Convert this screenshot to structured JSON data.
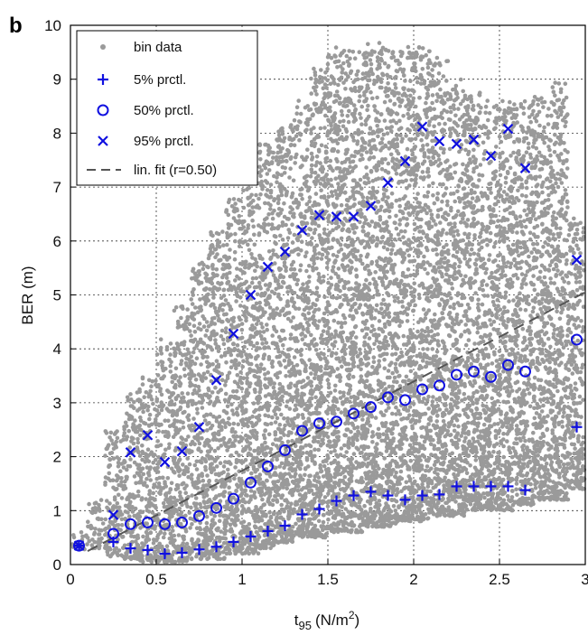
{
  "panel_letter": "b",
  "chart_data": {
    "type": "scatter",
    "xlabel_main": "t",
    "xlabel_sub": "95",
    "xlabel_unit": "(N/m",
    "xlabel_sup": "2",
    "xlabel_close": ")",
    "ylabel": "BER (m)",
    "xlim": [
      0,
      3
    ],
    "ylim": [
      0,
      10
    ],
    "x_ticks": [
      0,
      0.5,
      1,
      1.5,
      2,
      2.5,
      3
    ],
    "x_tick_labels": [
      "0",
      "0.5",
      "1",
      "1.5",
      "2",
      "2.5",
      "3"
    ],
    "y_ticks": [
      0,
      1,
      2,
      3,
      4,
      5,
      6,
      7,
      8,
      9,
      10
    ],
    "y_tick_labels": [
      "0",
      "1",
      "2",
      "3",
      "4",
      "5",
      "6",
      "7",
      "8",
      "9",
      "10"
    ],
    "grid": true,
    "legend_position": "top-left",
    "colors": {
      "bin": "#9a9a9a",
      "percentile": "#1010e0",
      "fit": "#555555"
    },
    "series": [
      {
        "name": "5% prctl.",
        "marker": "plus",
        "x": [
          0.05,
          0.25,
          0.35,
          0.45,
          0.55,
          0.65,
          0.75,
          0.85,
          0.95,
          1.05,
          1.15,
          1.25,
          1.35,
          1.45,
          1.55,
          1.65,
          1.75,
          1.85,
          1.95,
          2.05,
          2.15,
          2.25,
          2.35,
          2.45,
          2.55,
          2.65,
          2.95
        ],
        "y": [
          0.35,
          0.42,
          0.3,
          0.27,
          0.2,
          0.22,
          0.28,
          0.33,
          0.42,
          0.52,
          0.62,
          0.72,
          0.93,
          1.03,
          1.18,
          1.28,
          1.35,
          1.28,
          1.2,
          1.28,
          1.3,
          1.45,
          1.45,
          1.45,
          1.45,
          1.38,
          2.55
        ]
      },
      {
        "name": "50% prctl.",
        "marker": "circle",
        "x": [
          0.05,
          0.25,
          0.35,
          0.45,
          0.55,
          0.65,
          0.75,
          0.85,
          0.95,
          1.05,
          1.15,
          1.25,
          1.35,
          1.45,
          1.55,
          1.65,
          1.75,
          1.85,
          1.95,
          2.05,
          2.15,
          2.25,
          2.35,
          2.45,
          2.55,
          2.65,
          2.95
        ],
        "y": [
          0.35,
          0.57,
          0.75,
          0.78,
          0.75,
          0.78,
          0.9,
          1.05,
          1.22,
          1.52,
          1.82,
          2.12,
          2.48,
          2.62,
          2.65,
          2.8,
          2.92,
          3.1,
          3.05,
          3.25,
          3.32,
          3.52,
          3.58,
          3.48,
          3.7,
          3.58,
          4.17
        ]
      },
      {
        "name": "95% prctl.",
        "marker": "cross",
        "x": [
          0.05,
          0.25,
          0.35,
          0.45,
          0.55,
          0.65,
          0.75,
          0.85,
          0.95,
          1.05,
          1.15,
          1.25,
          1.35,
          1.45,
          1.55,
          1.65,
          1.75,
          1.85,
          1.95,
          2.05,
          2.15,
          2.25,
          2.35,
          2.45,
          2.55,
          2.65,
          2.95
        ],
        "y": [
          0.35,
          0.92,
          2.08,
          2.4,
          1.9,
          2.1,
          2.55,
          3.42,
          4.28,
          5.0,
          5.52,
          5.8,
          6.2,
          6.48,
          6.45,
          6.45,
          6.65,
          7.08,
          7.48,
          8.12,
          7.85,
          7.8,
          7.88,
          7.58,
          8.08,
          7.35,
          5.65
        ]
      }
    ],
    "bin_data": {
      "name": "bin data",
      "marker": "dot",
      "bins_x": [
        0.05,
        0.15,
        0.25,
        0.35,
        0.45,
        0.55,
        0.65,
        0.75,
        0.85,
        0.95,
        1.05,
        1.15,
        1.25,
        1.35,
        1.45,
        1.55,
        1.65,
        1.75,
        1.85,
        1.95,
        2.05,
        2.15,
        2.25,
        2.35,
        2.45,
        2.55,
        2.65,
        2.75,
        2.85,
        2.95
      ],
      "bins_ymin": [
        0.25,
        0.3,
        0.15,
        0.1,
        0.05,
        0.05,
        0.05,
        0.1,
        0.1,
        0.2,
        0.2,
        0.3,
        0.4,
        0.5,
        0.5,
        0.6,
        0.6,
        0.7,
        0.7,
        0.8,
        0.8,
        0.9,
        0.9,
        1.0,
        1.0,
        1.0,
        1.1,
        1.2,
        1.2,
        1.4
      ],
      "bins_ymax": [
        0.6,
        1.2,
        2.5,
        3.2,
        3.6,
        4.2,
        4.8,
        5.6,
        6.2,
        6.8,
        7.2,
        7.8,
        8.2,
        8.6,
        9.2,
        9.6,
        9.6,
        9.8,
        9.6,
        9.6,
        9.6,
        9.4,
        9.0,
        8.8,
        8.6,
        8.6,
        8.6,
        8.8,
        9.0,
        6.5
      ]
    },
    "fit": {
      "name": "lin. fit (r=0.50)",
      "style": "dashed",
      "x": [
        0.1,
        3.0
      ],
      "y": [
        0.25,
        5.05
      ]
    }
  }
}
